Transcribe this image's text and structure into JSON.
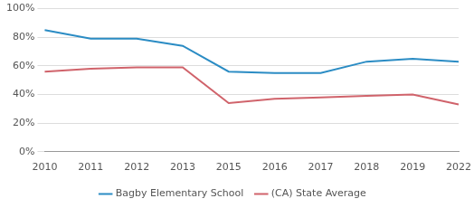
{
  "chart_data": {
    "type": "line",
    "categories": [
      "2010",
      "2011",
      "2012",
      "2013",
      "2015",
      "2016",
      "2017",
      "2018",
      "2019",
      "2022"
    ],
    "series": [
      {
        "name": "Bagby Elementary School",
        "color": "#2b8cc4",
        "values": [
          85,
          79,
          79,
          74,
          56,
          55,
          55,
          63,
          65,
          63
        ]
      },
      {
        "name": "(CA) State Average",
        "color": "#d0636b",
        "values": [
          56,
          58,
          59,
          59,
          34,
          37,
          38,
          39,
          40,
          33
        ]
      }
    ],
    "ylim": [
      0,
      100
    ],
    "yticks": [
      {
        "value": 0,
        "label": "0%"
      },
      {
        "value": 20,
        "label": "20%"
      },
      {
        "value": 40,
        "label": "40%"
      },
      {
        "value": 60,
        "label": "60%"
      },
      {
        "value": 80,
        "label": "80%"
      },
      {
        "value": 100,
        "label": "100%"
      }
    ],
    "grid": true,
    "legend": "bottom"
  }
}
